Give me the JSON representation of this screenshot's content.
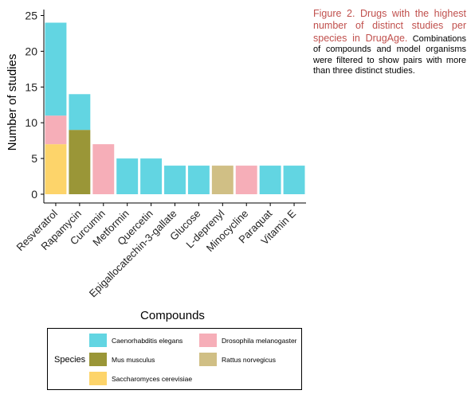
{
  "caption": {
    "lead": "Figure 2. Drugs with the highest number of distinct studies per species in DrugAge.",
    "body": "Combinations of compounds and model organisms were filtered to show pairs with more than three distinct studies."
  },
  "legend": {
    "title": "Species",
    "items": [
      {
        "name": "Caenorhabditis elegans",
        "color": "#62d5e2"
      },
      {
        "name": "Drosophila melanogaster",
        "color": "#f6aeb8"
      },
      {
        "name": "Mus musculus",
        "color": "#9a9637"
      },
      {
        "name": "Rattus norvegicus",
        "color": "#d0bf85"
      },
      {
        "name": "Saccharomyces cerevisiae",
        "color": "#fdd46a"
      }
    ]
  },
  "chart_data": {
    "type": "bar",
    "stacked": true,
    "title": "",
    "xlabel": "Compounds",
    "ylabel": "Number of studies",
    "ylim": [
      0,
      25
    ],
    "yticks": [
      0,
      5,
      10,
      15,
      20,
      25
    ],
    "grid": false,
    "legend_position": "bottom",
    "categories": [
      "Resveratrol",
      "Rapamycin",
      "Curcumin",
      "Metformin",
      "Quercetin",
      "Epigallocatechin-3-gallate",
      "Glucose",
      "L-deprenyl",
      "Minocycline",
      "Paraquat",
      "Vitamin E"
    ],
    "series": [
      {
        "name": "Saccharomyces cerevisiae",
        "color": "#fdd46a",
        "values": [
          7,
          0,
          0,
          0,
          0,
          0,
          0,
          0,
          0,
          0,
          0
        ]
      },
      {
        "name": "Drosophila melanogaster",
        "color": "#f6aeb8",
        "values": [
          4,
          0,
          7,
          0,
          0,
          0,
          0,
          0,
          4,
          0,
          0
        ]
      },
      {
        "name": "Mus musculus",
        "color": "#9a9637",
        "values": [
          0,
          9,
          0,
          0,
          0,
          0,
          0,
          0,
          0,
          0,
          0
        ]
      },
      {
        "name": "Rattus norvegicus",
        "color": "#d0bf85",
        "values": [
          0,
          0,
          0,
          0,
          0,
          0,
          0,
          4,
          0,
          0,
          0
        ]
      },
      {
        "name": "Caenorhabditis elegans",
        "color": "#62d5e2",
        "values": [
          13,
          5,
          0,
          5,
          5,
          4,
          4,
          0,
          0,
          4,
          4
        ]
      }
    ]
  }
}
